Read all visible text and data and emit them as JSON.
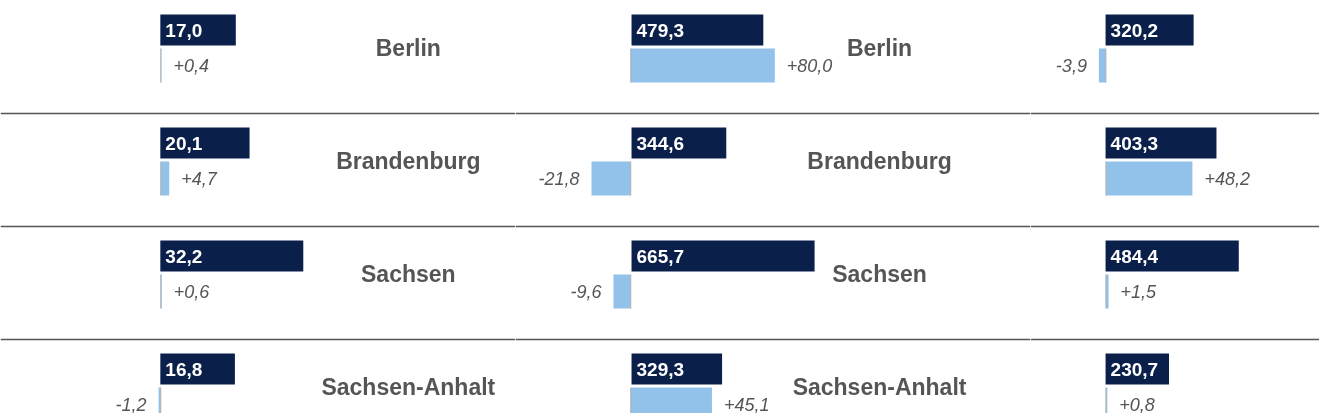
{
  "chart_data": [
    {
      "type": "bar",
      "orientation": "horizontal",
      "categories": [
        "Berlin",
        "Brandenburg",
        "Sachsen",
        "Sachsen-Anhalt"
      ],
      "xlim": [
        -36,
        80
      ],
      "tick_labels": false,
      "series": [
        {
          "color": "#0b1f4b",
          "values": [
            17.0,
            20.1,
            32.2,
            16.8
          ],
          "value_labels": [
            "17,0",
            "20,1",
            "32,2",
            "16,8"
          ]
        }
      ]
    },
    {
      "type": "bar",
      "orientation": "horizontal",
      "categories": [
        null,
        null,
        null,
        null
      ],
      "xlim": [
        -89,
        197
      ],
      "tick_labels": false,
      "series": [
        {
          "color": "#92c2ea",
          "values": [
            0.4,
            4.7,
            0.6,
            -1.2
          ],
          "value_labels": [
            "+0,4",
            "+4,7",
            "+0,6",
            "-1,2"
          ]
        }
      ]
    },
    {
      "type": "bar",
      "orientation": "horizontal",
      "categories": [
        "Berlin",
        "Brandenburg",
        "Sachsen",
        "Sachsen-Anhalt"
      ],
      "xlim": [
        -422,
        1451
      ],
      "tick_labels": false,
      "series": [
        {
          "color": "#0b1f4b",
          "values": [
            479.3,
            344.6,
            665.7,
            329.3
          ],
          "value_labels": [
            "479,3",
            "344,6",
            "665,7",
            "329,3"
          ]
        }
      ]
    },
    {
      "type": "bar",
      "orientation": "horizontal",
      "categories": [
        null,
        null,
        null,
        null
      ],
      "xlim": [
        -64,
        222
      ],
      "tick_labels": false,
      "series": [
        {
          "color": "#92c2ea",
          "values": [
            80.0,
            -21.8,
            -9.6,
            45.1
          ],
          "value_labels": [
            "+80,0",
            "-21,8",
            "-9,6",
            "+45,1"
          ]
        }
      ]
    },
    {
      "type": "bar",
      "orientation": "horizontal",
      "categories": [
        null,
        null,
        null,
        null
      ],
      "xlim": [
        -273,
        778
      ],
      "tick_labels": false,
      "series": [
        {
          "color": "#0b1f4b",
          "values": [
            320.2,
            403.3,
            484.4,
            230.7
          ],
          "value_labels": [
            "320,2",
            "403,3",
            "484,4",
            "230,7"
          ]
        }
      ]
    },
    {
      "type": "bar",
      "orientation": "horizontal",
      "categories": [
        null,
        null,
        null,
        null
      ],
      "xlim": [
        -42,
        119
      ],
      "tick_labels": false,
      "series": [
        {
          "color": "#92c2ea",
          "values": [
            -3.9,
            48.2,
            1.5,
            0.8
          ],
          "value_labels": [
            "-3,9",
            "+48,2",
            "+1,5",
            "+0,8"
          ]
        }
      ]
    }
  ]
}
